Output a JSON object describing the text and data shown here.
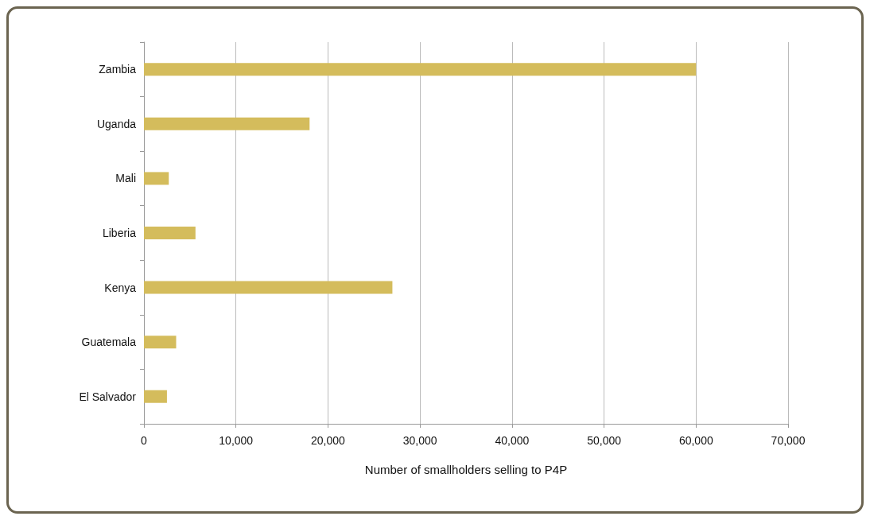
{
  "chart_data": {
    "type": "bar",
    "orientation": "horizontal",
    "xlabel": "Number of smallholders selling to P4P",
    "categories": [
      "Zambia",
      "Uganda",
      "Mali",
      "Liberia",
      "Kenya",
      "Guatemala",
      "El Salvador"
    ],
    "values": [
      60000,
      18000,
      2700,
      5600,
      27000,
      3500,
      2500
    ],
    "color": "#d4bc5c",
    "xlim": [
      0,
      70000
    ],
    "xticks": [
      {
        "value": 0,
        "label": "0"
      },
      {
        "value": 10000,
        "label": "10,000"
      },
      {
        "value": 20000,
        "label": "20,000"
      },
      {
        "value": 30000,
        "label": "30,000"
      },
      {
        "value": 40000,
        "label": "40,000"
      },
      {
        "value": 50000,
        "label": "50,000"
      },
      {
        "value": 60000,
        "label": "60,000"
      },
      {
        "value": 70000,
        "label": "70,000"
      }
    ],
    "grid": "x"
  }
}
